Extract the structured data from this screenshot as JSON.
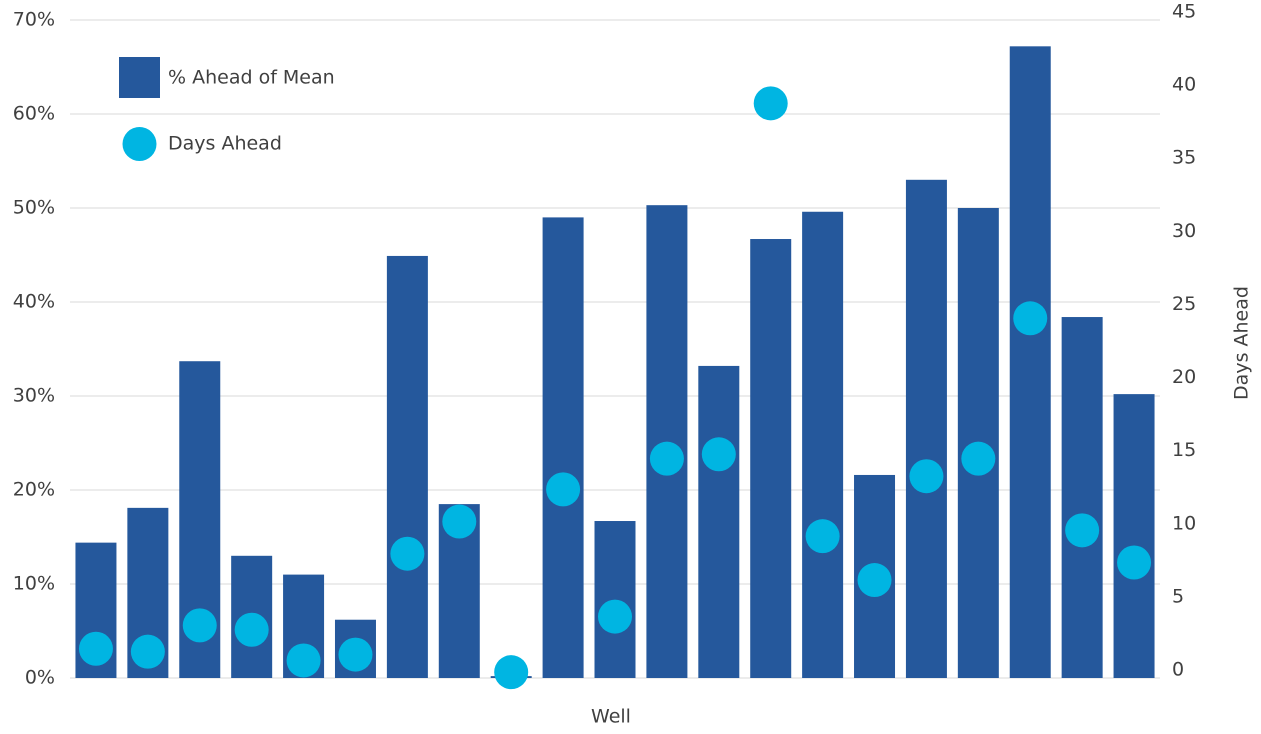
{
  "chart_data": {
    "type": "bar",
    "x_label": "Well",
    "y2_label": "Days Ahead",
    "categories": [
      null,
      null,
      null,
      null,
      null,
      null,
      null,
      null,
      null,
      null,
      null,
      null,
      null,
      null,
      null,
      null,
      null,
      null,
      null,
      null,
      null
    ],
    "series": [
      {
        "name": "% Ahead of Mean",
        "color": "#25589c",
        "type": "bar",
        "values": [
          14.4,
          18.1,
          33.7,
          13.0,
          11.0,
          6.2,
          44.9,
          18.5,
          0.2,
          49.0,
          16.7,
          50.3,
          33.2,
          46.7,
          49.6,
          21.6,
          53.0,
          50.0,
          67.2,
          38.4,
          30.2
        ]
      },
      {
        "name": "Days Ahead",
        "color": "#00b5e2",
        "type": "scatter",
        "axis": "y2",
        "values": [
          2.0,
          1.8,
          3.6,
          3.3,
          1.2,
          1.6,
          8.5,
          10.7,
          0.4,
          12.9,
          4.2,
          15.0,
          15.3,
          39.3,
          9.7,
          6.7,
          13.8,
          15.0,
          24.6,
          10.1,
          7.9
        ]
      }
    ],
    "ylim": [
      0,
      70
    ],
    "yticks": [
      {
        "value": 0,
        "label": "0%"
      },
      {
        "value": 10,
        "label": "10%"
      },
      {
        "value": 20,
        "label": "20%"
      },
      {
        "value": 30,
        "label": "30%"
      },
      {
        "value": 40,
        "label": "40%"
      },
      {
        "value": 50,
        "label": "50%"
      },
      {
        "value": 60,
        "label": "60%"
      },
      {
        "value": 70,
        "label": "70%"
      }
    ],
    "y2lim": [
      0,
      45
    ],
    "y2ticks": [
      0,
      5,
      10,
      15,
      20,
      25,
      30,
      35,
      40,
      45
    ],
    "grid": true,
    "legend": "upper left"
  }
}
